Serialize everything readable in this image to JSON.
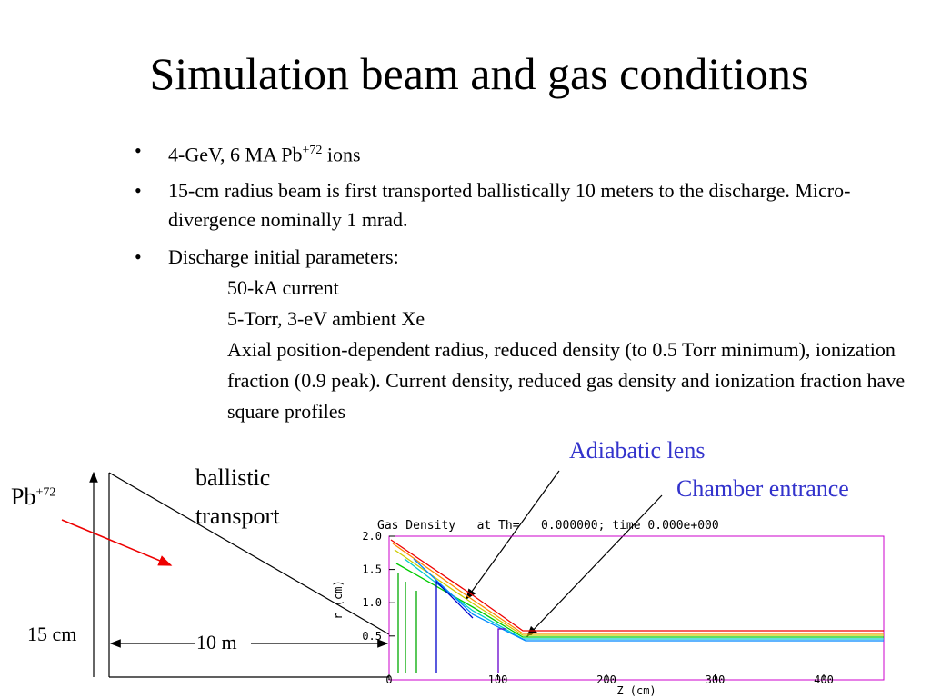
{
  "slide": {
    "title": "Simulation beam and gas conditions",
    "bullets": [
      {
        "text": "4-GeV, 6 MA Pb",
        "sup": "+72",
        "after": " ions"
      },
      {
        "text": "15-cm radius beam is first transported ballistically 10 meters to the discharge. Micro-divergence nominally 1 mrad."
      },
      {
        "text": "Discharge initial parameters:",
        "sub": [
          "50-kA current",
          "5-Torr, 3-eV ambient Xe",
          "Axial position-dependent radius, reduced density (to 0.5 Torr minimum), ionization fraction (0.9 peak). Current density, reduced gas density and ionization fraction have square profiles"
        ]
      }
    ],
    "diagram": {
      "beam_label": {
        "text": "Pb",
        "sup": "+72"
      },
      "transport_label": [
        "ballistic",
        "transport"
      ],
      "radius_label": "15 cm",
      "length_label": "10 m",
      "lens_label": "Adiabatic lens",
      "entrance_label": "Chamber entrance"
    },
    "plot": {
      "title": "Gas Density   at Th=   0.000000; time 0.000e+000",
      "ylabel": "r (cm)",
      "xlabel": "Z (cm)",
      "yticks": [
        "2.0",
        "1.5",
        "1.0",
        "0.5"
      ],
      "xticks": [
        "0",
        "100",
        "200",
        "300",
        "400"
      ]
    }
  }
}
